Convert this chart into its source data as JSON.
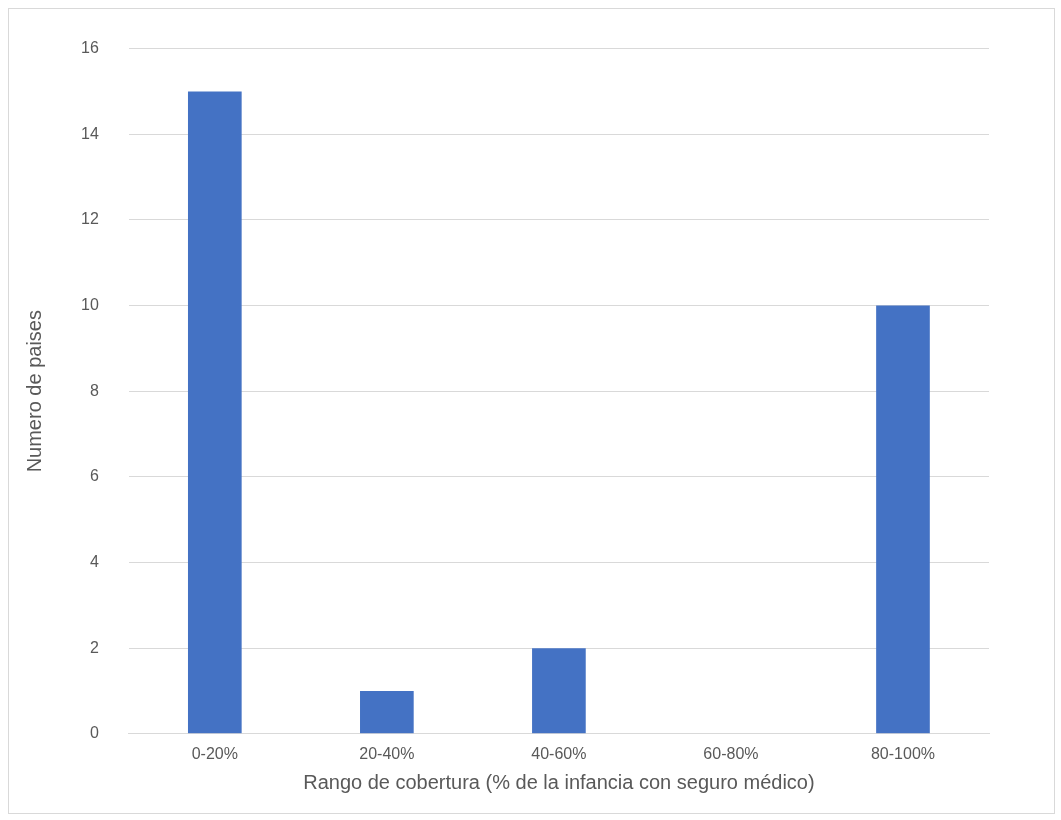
{
  "chart_data": {
    "type": "bar",
    "categories": [
      "0-20%",
      "20-40%",
      "40-60%",
      "60-80%",
      "80-100%"
    ],
    "values": [
      15,
      1,
      2,
      0,
      10
    ],
    "color": "#4472c4",
    "xlabel": "Rango de cobertura (% de la infancia con seguro médico)",
    "ylabel": "Numero de paises",
    "ylim": [
      0,
      16
    ],
    "yticks": [
      0,
      2,
      4,
      6,
      8,
      10,
      12,
      14,
      16
    ],
    "grid": "y"
  }
}
